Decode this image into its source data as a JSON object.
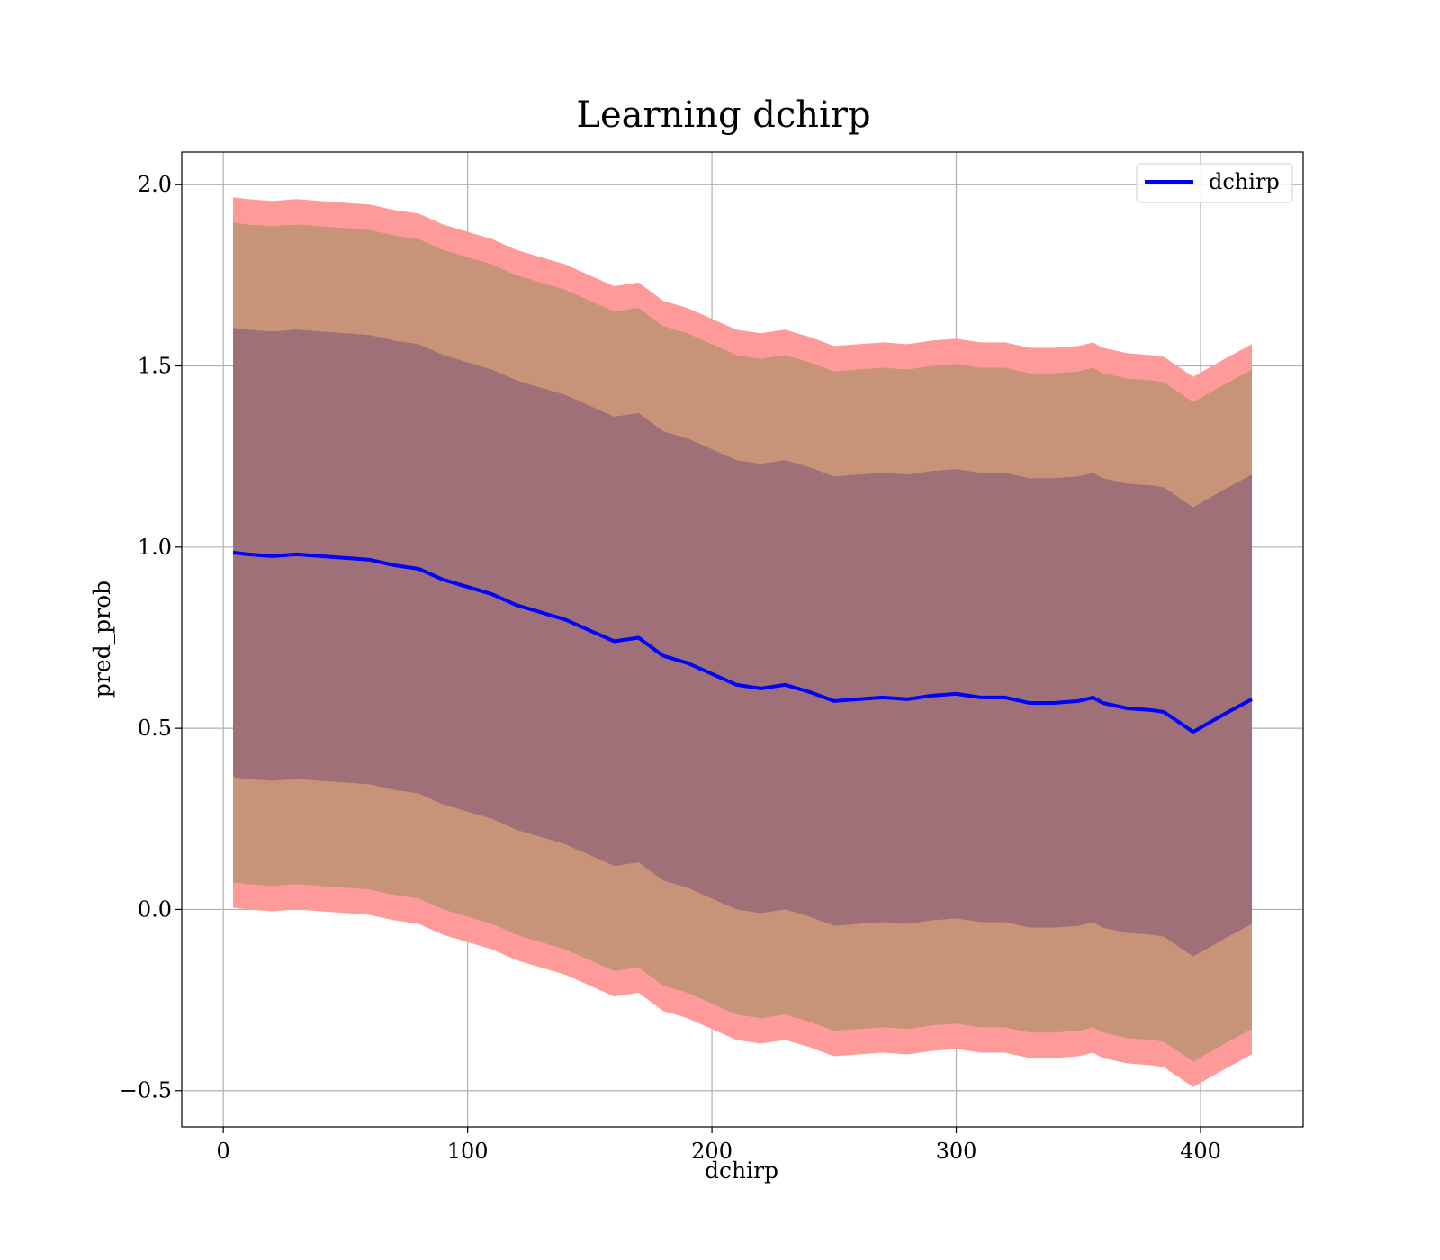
{
  "chart_data": {
    "type": "line",
    "title": "Learning dchirp",
    "xlabel": "dchirp",
    "ylabel": "pred_prob",
    "xlim": [
      -17,
      442
    ],
    "ylim": [
      -0.6,
      2.09
    ],
    "xticks": [
      0,
      100,
      200,
      300,
      400
    ],
    "xtick_labels": [
      "0",
      "100",
      "200",
      "300",
      "400"
    ],
    "yticks": [
      -0.5,
      0.0,
      0.5,
      1.0,
      1.5,
      2.0
    ],
    "ytick_labels": [
      "−0.5",
      "0.0",
      "0.5",
      "1.0",
      "1.5",
      "2.0"
    ],
    "grid": true,
    "legend": {
      "position": "top-right",
      "entries": [
        "dchirp"
      ]
    },
    "colors": {
      "line": "#0000ff",
      "band_outer": "#ff9a9a",
      "band_middle": "#c79479",
      "band_inner": "#a07078"
    },
    "series": [
      {
        "name": "dchirp",
        "x": [
          4,
          10,
          20,
          30,
          40,
          50,
          60,
          70,
          80,
          90,
          100,
          110,
          120,
          130,
          140,
          150,
          160,
          170,
          180,
          190,
          200,
          210,
          220,
          230,
          240,
          250,
          260,
          270,
          280,
          290,
          300,
          310,
          320,
          330,
          340,
          350,
          356,
          360,
          370,
          380,
          385,
          397,
          410,
          421
        ],
        "y": [
          0.985,
          0.98,
          0.975,
          0.98,
          0.975,
          0.97,
          0.965,
          0.95,
          0.94,
          0.91,
          0.89,
          0.87,
          0.84,
          0.82,
          0.8,
          0.77,
          0.74,
          0.75,
          0.7,
          0.68,
          0.65,
          0.62,
          0.61,
          0.62,
          0.6,
          0.575,
          0.58,
          0.585,
          0.58,
          0.59,
          0.595,
          0.585,
          0.585,
          0.57,
          0.57,
          0.575,
          0.585,
          0.57,
          0.555,
          0.55,
          0.545,
          0.49,
          0.54,
          0.58
        ]
      }
    ],
    "bands": {
      "inner_half_width": 0.62,
      "middle_half_width": 0.91,
      "outer_half_width": 0.98
    }
  }
}
